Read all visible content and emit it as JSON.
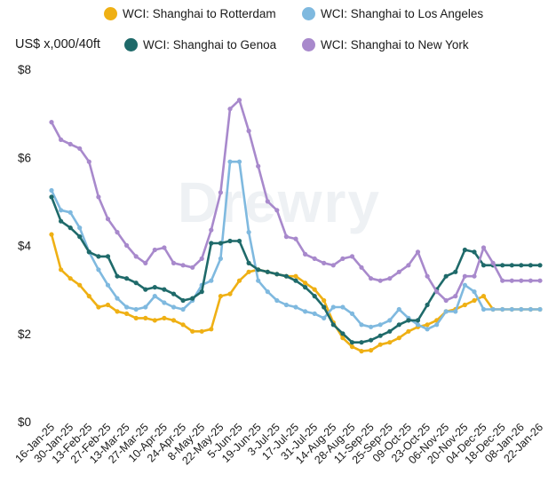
{
  "chart_data": {
    "type": "line",
    "ylabel": "US$ x,000/40ft",
    "ylim": [
      0,
      8
    ],
    "yticks": [
      0,
      2,
      4,
      6,
      8
    ],
    "ytick_labels": [
      "$0",
      "$2",
      "$4",
      "$6",
      "$8"
    ],
    "watermark": "Drewry",
    "x": [
      "16-Jan-25",
      "23-Jan-25",
      "30-Jan-25",
      "06-Feb-25",
      "13-Feb-25",
      "20-Feb-25",
      "27-Feb-25",
      "06-Mar-25",
      "13-Mar-25",
      "20-Mar-25",
      "27-Mar-25",
      "03-Apr-25",
      "10-Apr-25",
      "17-Apr-25",
      "24-Apr-25",
      "01-May-25",
      "8-May-25",
      "15-May-25",
      "22-May-25",
      "29-May-25",
      "5-Jun-25",
      "12-Jun-25",
      "19-Jun-25",
      "26-Jun-25",
      "3-Jul-25",
      "10-Jul-25",
      "17-Jul-25",
      "24-Jul-25",
      "31-Jul-25",
      "07-Aug-25",
      "14-Aug-25",
      "21-Aug-25",
      "28-Aug-25",
      "04-Sep-25",
      "11-Sep-25",
      "18-Sep-25",
      "25-Sep-25",
      "02-Oct-25",
      "09-Oct-25",
      "16-Oct-25",
      "23-Oct-25",
      "30-Oct-25",
      "06-Nov-25",
      "13-Nov-25",
      "20-Nov-25",
      "27-Nov-25",
      "04-Dec-25",
      "11-Dec-25",
      "18-Dec-25",
      "25-Dec-25",
      "08-Jan-26",
      "15-Jan-26",
      "22-Jan-26"
    ],
    "xtick_labels": [
      "16-Jan-25",
      "30-Jan-25",
      "13-Feb-25",
      "27-Feb-25",
      "13-Mar-25",
      "27-Mar-25",
      "10-Apr-25",
      "24-Apr-25",
      "8-May-25",
      "22-May-25",
      "5-Jun-25",
      "19-Jun-25",
      "3-Jul-25",
      "17-Jul-25",
      "31-Jul-25",
      "14-Aug-25",
      "28-Aug-25",
      "11-Sep-25",
      "25-Sep-25",
      "09-Oct-25",
      "23-Oct-25",
      "06-Nov-25",
      "20-Nov-25",
      "04-Dec-25",
      "18-Dec-25",
      "08-Jan-26",
      "22-Jan-26"
    ],
    "grid": false,
    "legend": "top",
    "series": [
      {
        "name": "WCI: Shanghai to Rotterdam",
        "color": "#efb014",
        "values": [
          4.25,
          3.45,
          3.25,
          3.1,
          2.85,
          2.6,
          2.65,
          2.5,
          2.45,
          2.35,
          2.35,
          2.3,
          2.35,
          2.3,
          2.2,
          2.05,
          2.05,
          2.1,
          2.85,
          2.9,
          3.2,
          3.4,
          3.45,
          3.4,
          3.35,
          3.3,
          3.3,
          3.15,
          3.0,
          2.75,
          2.25,
          1.9,
          1.7,
          1.6,
          1.62,
          1.75,
          1.8,
          1.9,
          2.05,
          2.15,
          2.2,
          2.3,
          2.5,
          2.55,
          2.65,
          2.75,
          2.85,
          2.55,
          2.55,
          2.55,
          2.55,
          2.55,
          2.55
        ]
      },
      {
        "name": "WCI: Shanghai to Los Angeles",
        "color": "#7fb9df",
        "values": [
          5.25,
          4.8,
          4.75,
          4.4,
          3.85,
          3.45,
          3.1,
          2.8,
          2.6,
          2.55,
          2.6,
          2.85,
          2.7,
          2.6,
          2.55,
          2.75,
          3.1,
          3.2,
          3.7,
          5.9,
          5.9,
          4.3,
          3.2,
          2.95,
          2.75,
          2.65,
          2.6,
          2.5,
          2.45,
          2.35,
          2.6,
          2.6,
          2.45,
          2.2,
          2.15,
          2.2,
          2.3,
          2.55,
          2.35,
          2.2,
          2.1,
          2.2,
          2.5,
          2.5,
          3.1,
          2.95,
          2.55,
          2.55,
          2.55,
          2.55,
          2.55,
          2.55,
          2.55
        ]
      },
      {
        "name": "WCI: Shanghai to Genoa",
        "color": "#1f6a6a",
        "values": [
          5.1,
          4.55,
          4.4,
          4.2,
          3.85,
          3.75,
          3.75,
          3.3,
          3.25,
          3.15,
          3.0,
          3.05,
          3.0,
          2.9,
          2.75,
          2.8,
          2.95,
          4.05,
          4.05,
          4.1,
          4.1,
          3.6,
          3.45,
          3.4,
          3.35,
          3.3,
          3.2,
          3.05,
          2.85,
          2.6,
          2.2,
          2.0,
          1.8,
          1.8,
          1.85,
          1.95,
          2.05,
          2.2,
          2.3,
          2.3,
          2.65,
          3.0,
          3.3,
          3.4,
          3.9,
          3.85,
          3.55,
          3.55,
          3.55,
          3.55,
          3.55,
          3.55,
          3.55
        ]
      },
      {
        "name": "WCI: Shanghai to New York",
        "color": "#a889cc",
        "values": [
          6.8,
          6.4,
          6.3,
          6.2,
          5.9,
          5.1,
          4.6,
          4.3,
          4.0,
          3.75,
          3.6,
          3.9,
          3.95,
          3.6,
          3.55,
          3.5,
          3.7,
          4.35,
          5.2,
          7.1,
          7.3,
          6.6,
          5.8,
          5.0,
          4.8,
          4.2,
          4.15,
          3.8,
          3.7,
          3.6,
          3.55,
          3.7,
          3.75,
          3.5,
          3.25,
          3.2,
          3.25,
          3.4,
          3.55,
          3.85,
          3.3,
          2.95,
          2.75,
          2.85,
          3.3,
          3.3,
          3.95,
          3.6,
          3.2,
          3.2,
          3.2,
          3.2,
          3.2
        ]
      }
    ]
  }
}
